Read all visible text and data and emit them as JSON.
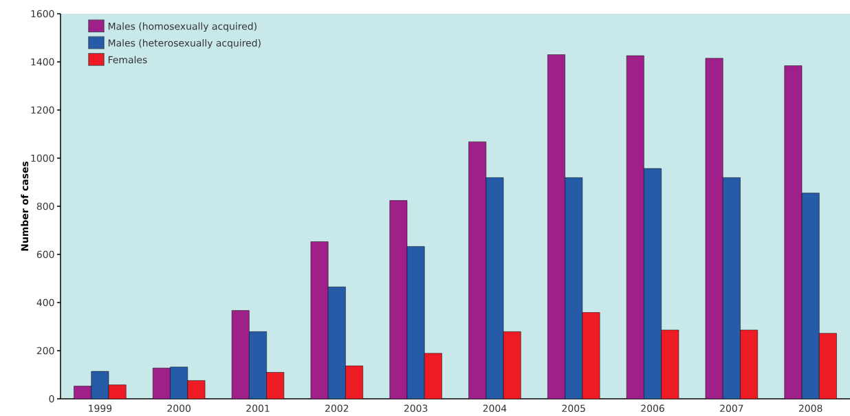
{
  "chart_data": {
    "type": "bar",
    "ylabel": "Number of cases",
    "categories": [
      "1999",
      "2000",
      "2001",
      "2002",
      "2003",
      "2004",
      "2005",
      "2006",
      "2007",
      "2008"
    ],
    "series": [
      {
        "name": "Males (homosexually acquired)",
        "color": "#a0208a",
        "values": [
          53,
          128,
          367,
          653,
          824,
          1068,
          1430,
          1426,
          1415,
          1384
        ]
      },
      {
        "name": "Males (heterosexually acquired)",
        "color": "#265ba8",
        "values": [
          114,
          132,
          279,
          465,
          633,
          919,
          919,
          957,
          919,
          855
        ]
      },
      {
        "name": "Females",
        "color": "#ed1c24",
        "values": [
          58,
          76,
          110,
          137,
          189,
          279,
          359,
          286,
          286,
          272
        ]
      }
    ],
    "ylim": [
      0,
      1600
    ],
    "yticks": [
      0,
      200,
      400,
      600,
      800,
      1000,
      1200,
      1400,
      1600
    ],
    "grid": false,
    "legend": "top left"
  }
}
